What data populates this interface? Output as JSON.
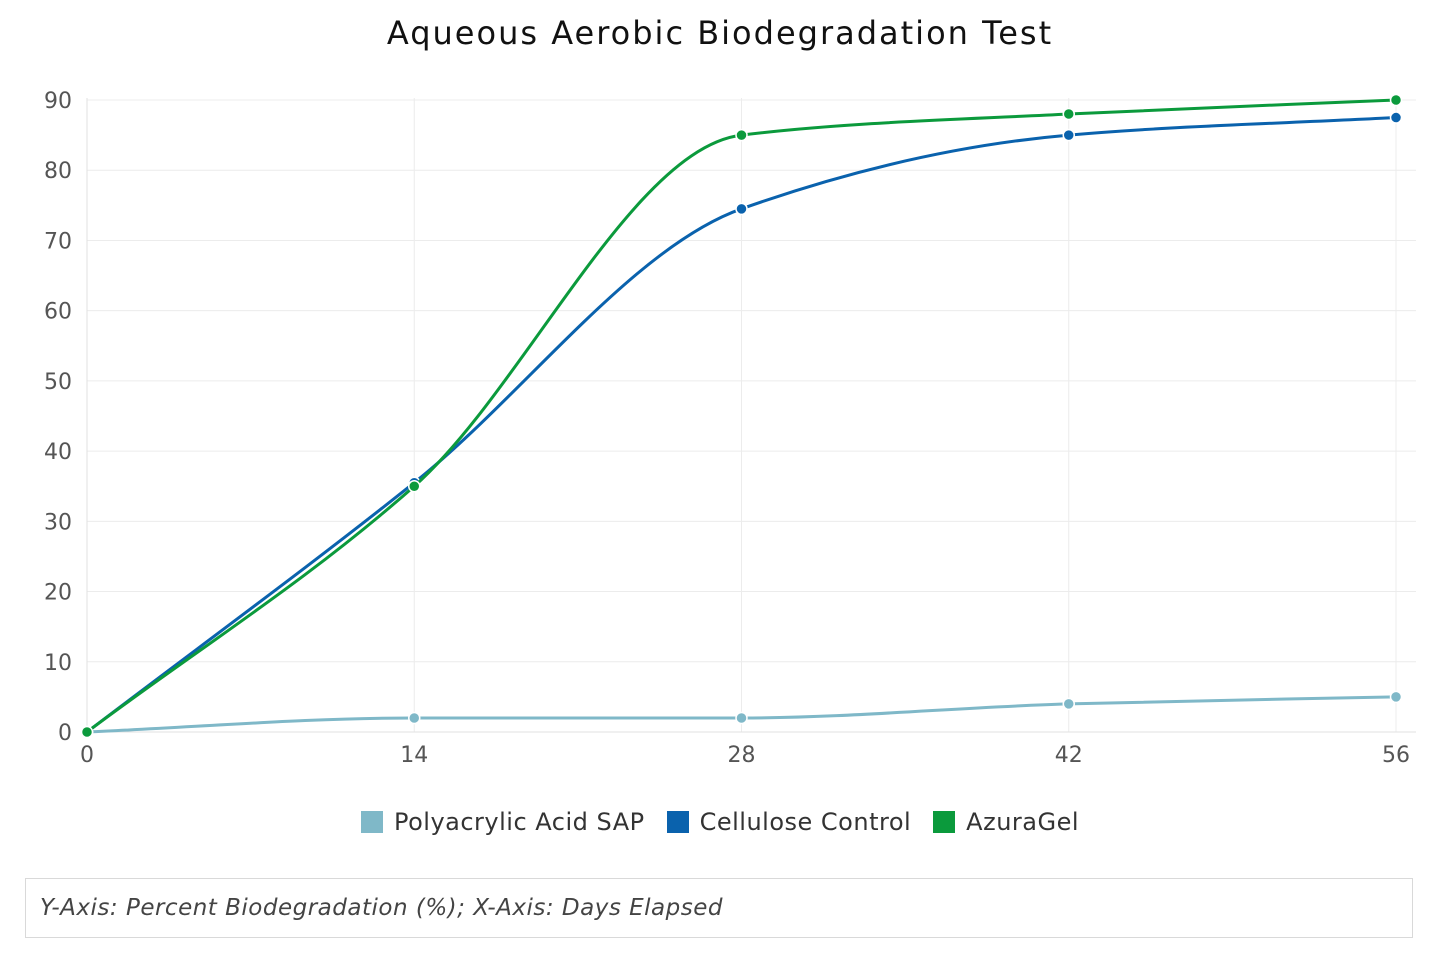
{
  "chart_data": {
    "type": "line",
    "title": "Aqueous Aerobic Biodegradation Test",
    "x": [
      0,
      14,
      28,
      42,
      56
    ],
    "xlim": [
      0,
      56
    ],
    "ylim": [
      0,
      90
    ],
    "yticks": [
      0,
      10,
      20,
      30,
      40,
      50,
      60,
      70,
      80,
      90
    ],
    "xticks": [
      0,
      14,
      28,
      42,
      56
    ],
    "grid": true,
    "legend_position": "bottom",
    "series": [
      {
        "name": "Polyacrylic Acid SAP",
        "color": "#7fb8c8",
        "values": [
          0,
          2,
          2,
          4,
          5
        ]
      },
      {
        "name": "Cellulose Control",
        "color": "#0a62ad",
        "values": [
          0,
          35.5,
          74.5,
          85,
          87.5
        ]
      },
      {
        "name": "AzuraGel",
        "color": "#0b9a3c",
        "values": [
          0,
          35,
          85,
          88,
          90
        ]
      }
    ],
    "caption": "Y-Axis: Percent Biodegradation (%); X-Axis: Days Elapsed"
  }
}
